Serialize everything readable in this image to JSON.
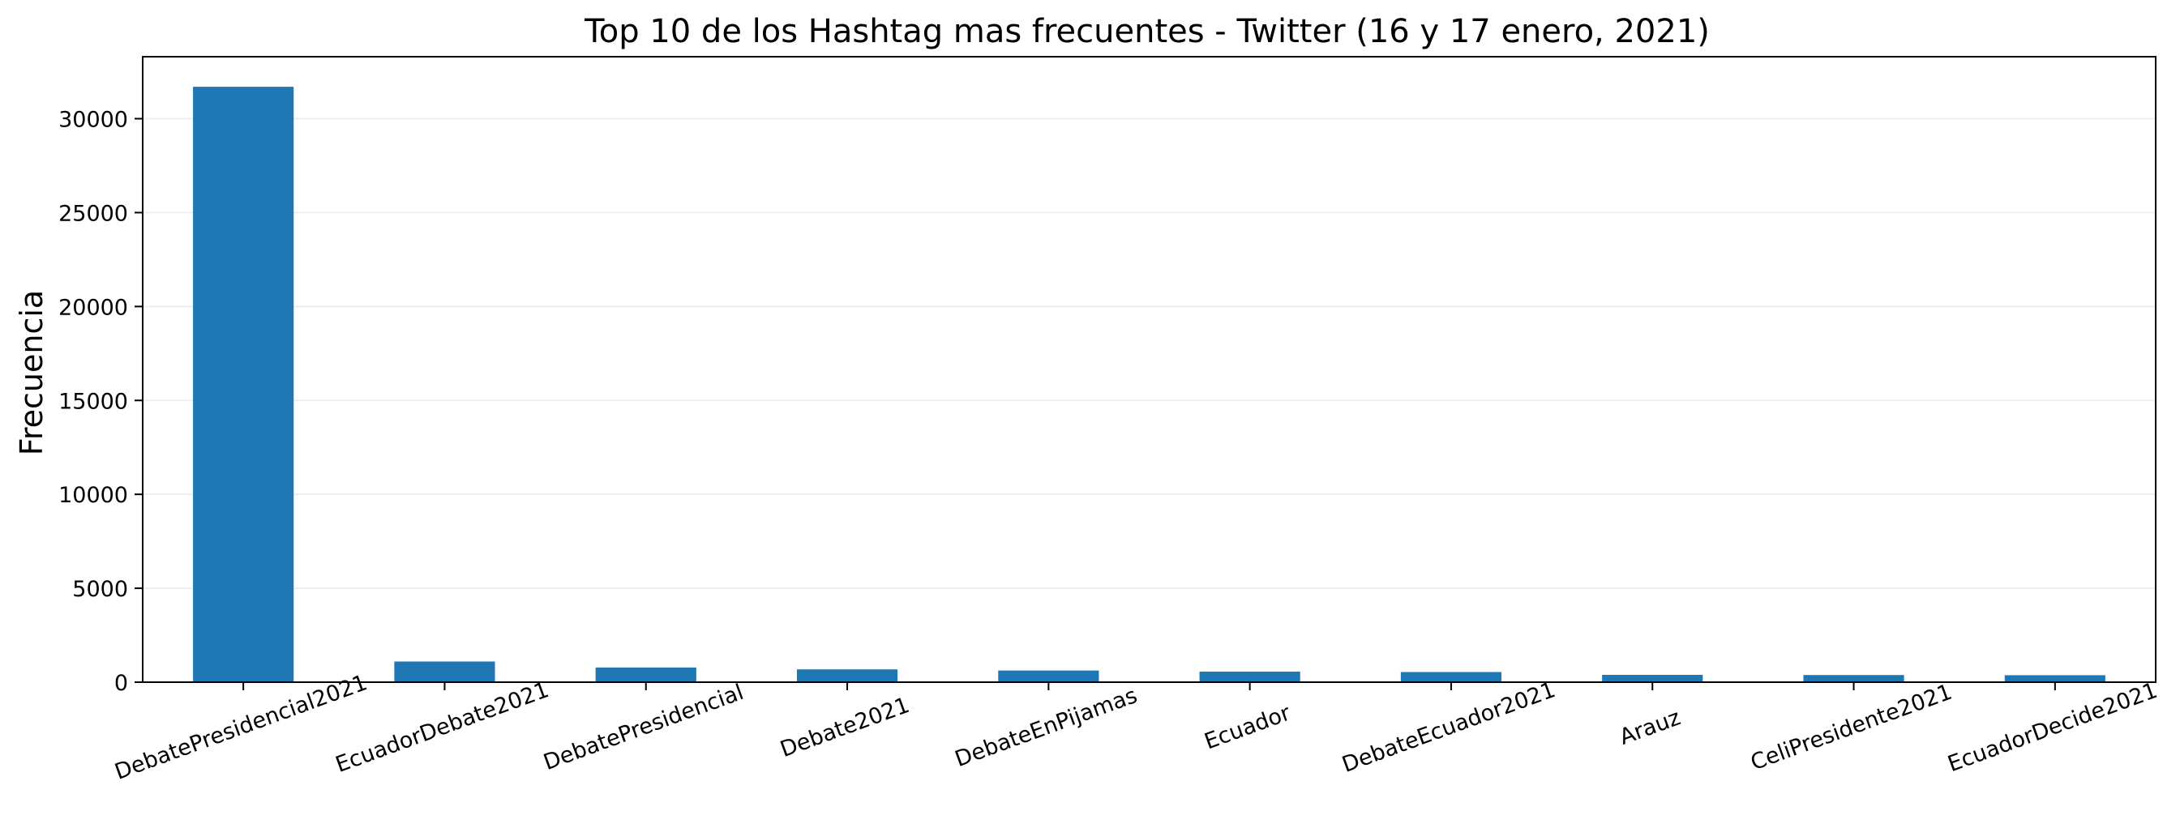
{
  "chart_data": {
    "type": "bar",
    "title": "Top 10 de los Hashtag mas frecuentes - Twitter (16 y 17 enero, 2021)",
    "xlabel": "",
    "ylabel": "Frecuencia",
    "categories": [
      "DebatePresidencial2021",
      "EcuadorDebate2021",
      "DebatePresidencial",
      "Debate2021",
      "DebateEnPijamas",
      "Ecuador",
      "DebateEcuador2021",
      "Arauz",
      "CeliPresidente2021",
      "EcuadorDecide2021"
    ],
    "values": [
      31700,
      1100,
      780,
      680,
      620,
      560,
      540,
      390,
      380,
      370
    ],
    "yticks": [
      0,
      5000,
      10000,
      15000,
      20000,
      25000,
      30000
    ],
    "ylim": [
      0,
      33300
    ],
    "grid": "horizontal",
    "bar_color": "#1f77b4",
    "legend": "none"
  }
}
